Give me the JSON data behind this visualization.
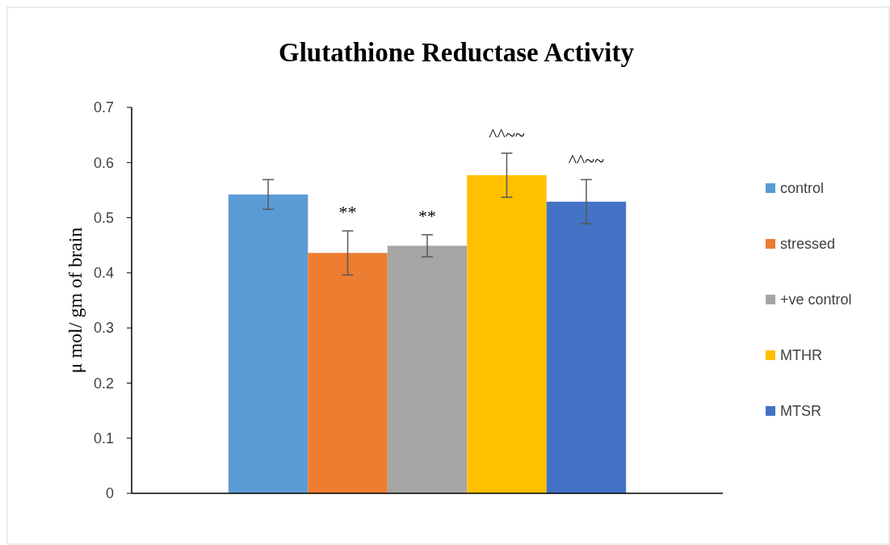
{
  "chart_data": {
    "type": "bar",
    "title": "Glutathione Reductase Activity",
    "ylabel": "μ mol/ gm of brain",
    "categories": [
      null
    ],
    "series": [
      {
        "name": "control",
        "color": "#5b9bd5",
        "values": [
          0.542
        ],
        "errors": [
          0.027
        ]
      },
      {
        "name": "stressed",
        "color": "#ed7d31",
        "values": [
          0.436
        ],
        "errors": [
          0.04
        ]
      },
      {
        "name": "+ve control",
        "color": "#a5a5a5",
        "values": [
          0.449
        ],
        "errors": [
          0.02
        ]
      },
      {
        "name": "MTHR",
        "color": "#ffc000",
        "values": [
          0.577
        ],
        "errors": [
          0.04
        ]
      },
      {
        "name": "MTSR",
        "color": "#4472c4",
        "values": [
          0.529
        ],
        "errors": [
          0.04
        ]
      }
    ],
    "annotations": [
      "**",
      "**",
      "^^~~",
      "^^~~"
    ],
    "ylim": [
      0,
      0.7
    ],
    "yticks": [
      0,
      0.1,
      0.2,
      0.3,
      0.4,
      0.5,
      0.6,
      0.7
    ],
    "grid": false,
    "legend": "right"
  }
}
